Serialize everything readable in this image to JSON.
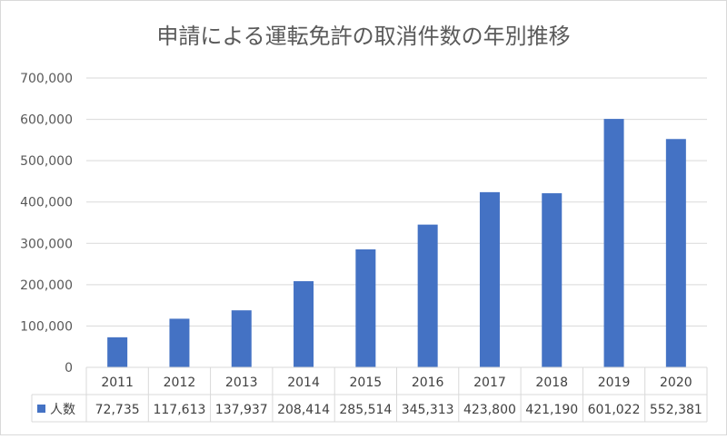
{
  "chart_data": {
    "type": "bar",
    "title": "申請による運転免許の取消件数の年別推移",
    "categories": [
      "2011",
      "2012",
      "2013",
      "2014",
      "2015",
      "2016",
      "2017",
      "2018",
      "2019",
      "2020"
    ],
    "series": [
      {
        "name": "人数",
        "color": "#4472C4",
        "values": [
          72735,
          117613,
          137937,
          208414,
          285514,
          345313,
          423800,
          421190,
          601022,
          552381
        ],
        "labels": [
          "72,735",
          "117,613",
          "137,937",
          "208,414",
          "285,514",
          "345,313",
          "423,800",
          "421,190",
          "601,022",
          "552,381"
        ]
      }
    ],
    "ylim": [
      0,
      700000
    ],
    "yticks": [
      0,
      100000,
      200000,
      300000,
      400000,
      500000,
      600000,
      700000
    ],
    "ytick_labels": [
      "0",
      "100,000",
      "200,000",
      "300,000",
      "400,000",
      "500,000",
      "600,000",
      "700,000"
    ],
    "grid": true,
    "data_table": true,
    "legend": "in-data-table"
  }
}
